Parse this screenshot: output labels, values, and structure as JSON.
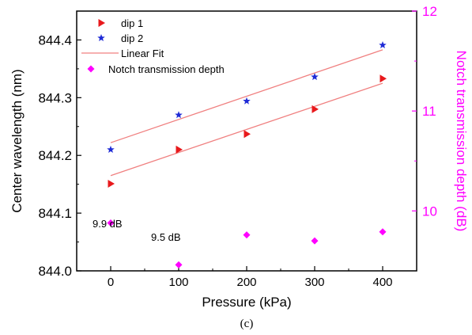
{
  "caption": "(c)",
  "chart_data": {
    "type": "scatter",
    "xlabel": "Pressure (kPa)",
    "ylabel_left": "Center wavelength (nm)",
    "ylabel_right": "Notch transmission depth (dB)",
    "xlim": [
      -50,
      450
    ],
    "ylim_left": [
      844.0,
      844.45
    ],
    "ylim_right": [
      9.4,
      12.0
    ],
    "xticks": [
      "0",
      "100",
      "200",
      "300",
      "400"
    ],
    "yticks_left": [
      "844.0",
      "844.1",
      "844.2",
      "844.3",
      "844.4"
    ],
    "yticks_right": [
      "10",
      "11",
      "12"
    ],
    "grid": false,
    "legend": {
      "position": "top-left",
      "entries": [
        "dip 1",
        "dip 2",
        "Linear Fit",
        "Notch transmission depth"
      ]
    },
    "colors": {
      "dip1": "#e8191c",
      "dip2": "#1f2bd6",
      "fit": "#f08080",
      "notch": "#ff00ff",
      "right_axis": "#ff00ff"
    },
    "series": [
      {
        "name": "dip 1",
        "axis": "left",
        "marker": "triangle-right",
        "x": [
          0,
          100,
          200,
          300,
          400
        ],
        "y": [
          844.151,
          844.21,
          844.237,
          844.28,
          844.333
        ]
      },
      {
        "name": "dip 2",
        "axis": "left",
        "marker": "star",
        "x": [
          0,
          100,
          200,
          300,
          400
        ],
        "y": [
          844.21,
          844.27,
          844.294,
          844.336,
          844.391
        ]
      },
      {
        "name": "Notch transmission depth",
        "axis": "right",
        "marker": "diamond",
        "x": [
          0,
          100,
          200,
          300,
          400
        ],
        "y": [
          9.88,
          9.46,
          9.76,
          9.7,
          9.79
        ]
      }
    ],
    "fits": [
      {
        "name": "Linear Fit",
        "of": "dip 1",
        "x": [
          0,
          400
        ],
        "y": [
          844.165,
          844.325
        ]
      },
      {
        "name": "Linear Fit",
        "of": "dip 2",
        "x": [
          0,
          400
        ],
        "y": [
          844.222,
          844.383
        ]
      }
    ],
    "annotations": [
      {
        "text": "9.9 dB",
        "x": 0,
        "y_right": 9.88
      },
      {
        "text": "9.5 dB",
        "x": 100,
        "y_right": 9.46
      }
    ]
  }
}
